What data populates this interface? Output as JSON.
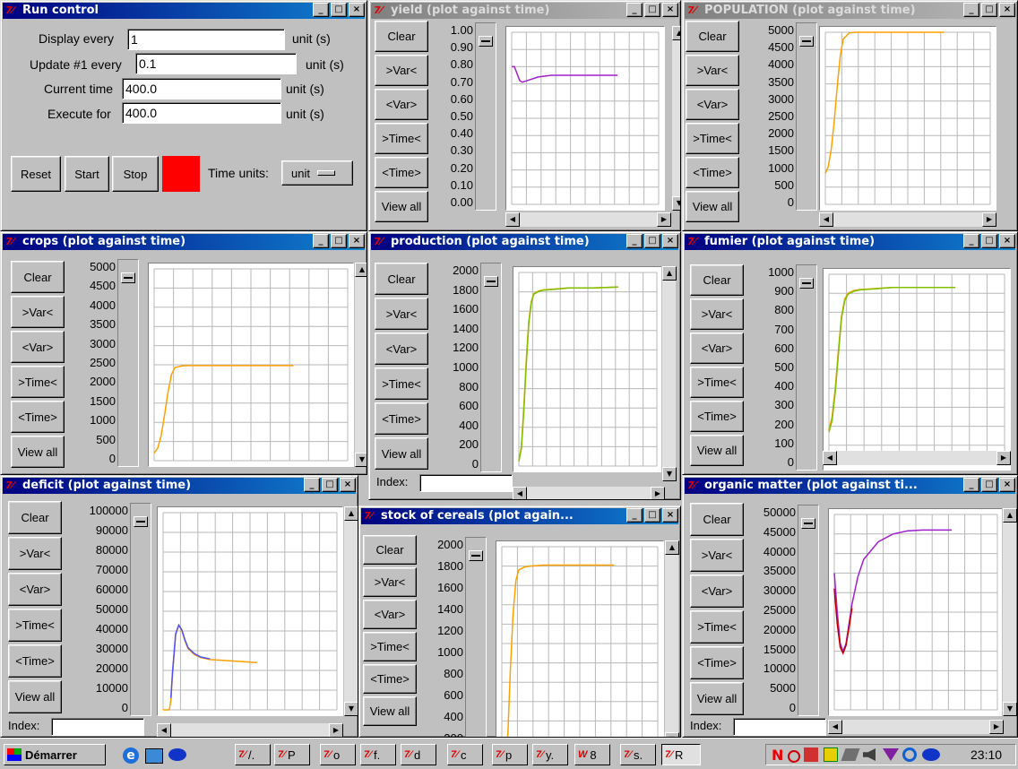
{
  "run_control": {
    "title": "Run control",
    "display_label": "Display every",
    "display_value": "1",
    "display_unit": "unit  (s)",
    "update_label": "Update #1 every",
    "update_value": "0.1",
    "update_unit": "unit  (s)",
    "current_label": "Current time",
    "current_value": "400.0",
    "current_unit": "unit  (s)",
    "execute_label": "Execute for",
    "execute_value": "400.0",
    "execute_unit": "unit  (s)",
    "reset": "Reset",
    "start": "Start",
    "stop": "Stop",
    "time_units_label": "Time units:",
    "time_units_value": "unit",
    "status_color": "#ff0000"
  },
  "plot_buttons": {
    "clear": "Clear",
    "var_in": ">Var<",
    "var_out": "<Var>",
    "time_in": ">Time<",
    "time_out": "<Time>",
    "view_all": "View all"
  },
  "index_label": "Index:",
  "windows": {
    "yield": {
      "title": "yield (plot against time)",
      "ticks": [
        "1.00",
        "0.90",
        "0.80",
        "0.70",
        "0.60",
        "0.50",
        "0.40",
        "0.30",
        "0.20",
        "0.10",
        "0.00"
      ]
    },
    "population": {
      "title": "POPULATION  (plot against time)",
      "ticks": [
        "5000",
        "4500",
        "4000",
        "3500",
        "3000",
        "2500",
        "2000",
        "1500",
        "1000",
        "500",
        "0"
      ]
    },
    "crops": {
      "title": "crops  (plot against time)",
      "ticks": [
        "5000",
        "4500",
        "4000",
        "3500",
        "3000",
        "2500",
        "2000",
        "1500",
        "1000",
        "500",
        "0"
      ]
    },
    "production": {
      "title": "production (plot against time)",
      "ticks": [
        "2000",
        "1800",
        "1600",
        "1400",
        "1200",
        "1000",
        "800",
        "600",
        "400",
        "200",
        "0"
      ]
    },
    "fumier": {
      "title": "fumier (plot against time)",
      "ticks": [
        "1000",
        "900",
        "800",
        "700",
        "600",
        "500",
        "400",
        "300",
        "200",
        "100",
        "0"
      ]
    },
    "deficit": {
      "title": "deficit (plot against time)",
      "ticks": [
        "100000",
        "90000",
        "80000",
        "70000",
        "60000",
        "50000",
        "40000",
        "30000",
        "20000",
        "10000",
        "0"
      ]
    },
    "stock": {
      "title": "stock of cereals  (plot again...",
      "ticks": [
        "2000",
        "1800",
        "1600",
        "1400",
        "1200",
        "1000",
        "800",
        "600",
        "400",
        "200"
      ]
    },
    "organic": {
      "title": "organic matter  (plot against ti...",
      "ticks": [
        "50000",
        "45000",
        "40000",
        "35000",
        "30000",
        "25000",
        "20000",
        "15000",
        "10000",
        "5000",
        "0"
      ]
    }
  },
  "chart_data": [
    {
      "type": "line",
      "title": "yield (plot against time)",
      "ylim": [
        0,
        1
      ],
      "xlim": [
        0,
        400
      ],
      "series": [
        {
          "color": "#a020d0",
          "x": [
            0,
            10,
            30,
            40,
            60,
            100,
            150,
            200,
            300,
            400
          ],
          "y": [
            0.8,
            0.8,
            0.72,
            0.71,
            0.72,
            0.74,
            0.75,
            0.75,
            0.75,
            0.75
          ]
        }
      ]
    },
    {
      "type": "line",
      "title": "POPULATION  (plot against time)",
      "ylim": [
        0,
        5000
      ],
      "xlim": [
        0,
        400
      ],
      "series": [
        {
          "color": "#ffa000",
          "x": [
            0,
            10,
            20,
            30,
            40,
            50,
            60,
            80,
            100,
            150,
            200,
            300,
            400
          ],
          "y": [
            900,
            1100,
            1600,
            2400,
            3400,
            4300,
            4800,
            4980,
            5000,
            5000,
            5000,
            5000,
            5000
          ]
        }
      ]
    },
    {
      "type": "line",
      "title": "crops  (plot against time)",
      "ylim": [
        0,
        5000
      ],
      "xlim": [
        0,
        400
      ],
      "series": [
        {
          "color": "#ffa000",
          "x": [
            0,
            10,
            20,
            30,
            40,
            50,
            60,
            80,
            100,
            150,
            200,
            300,
            400
          ],
          "y": [
            200,
            320,
            650,
            1200,
            1800,
            2250,
            2430,
            2470,
            2480,
            2480,
            2480,
            2480,
            2480
          ]
        }
      ]
    },
    {
      "type": "line",
      "title": "production (plot against time)",
      "ylim": [
        0,
        2000
      ],
      "xlim": [
        0,
        400
      ],
      "series": [
        {
          "color": "#ffa000",
          "x": [
            0,
            10,
            20,
            30,
            40,
            50,
            60,
            80,
            100,
            150,
            200,
            300,
            400
          ],
          "y": [
            50,
            200,
            600,
            1100,
            1500,
            1700,
            1780,
            1810,
            1820,
            1830,
            1840,
            1840,
            1850
          ]
        },
        {
          "color": "#7fbf00",
          "x": [
            0,
            10,
            20,
            30,
            40,
            50,
            60,
            80,
            100,
            150,
            200,
            300,
            400
          ],
          "y": [
            50,
            180,
            560,
            1060,
            1470,
            1690,
            1775,
            1805,
            1818,
            1828,
            1840,
            1840,
            1850
          ]
        }
      ]
    },
    {
      "type": "line",
      "title": "fumier (plot against time)",
      "ylim": [
        0,
        1000
      ],
      "xlim": [
        0,
        400
      ],
      "series": [
        {
          "color": "#ffa000",
          "x": [
            0,
            10,
            20,
            30,
            40,
            50,
            60,
            80,
            100,
            150,
            200,
            300,
            400
          ],
          "y": [
            180,
            250,
            400,
            600,
            780,
            870,
            900,
            915,
            920,
            925,
            930,
            930,
            930
          ]
        },
        {
          "color": "#7fbf00",
          "x": [
            0,
            10,
            20,
            30,
            40,
            50,
            60,
            80,
            100,
            150,
            200,
            300,
            400
          ],
          "y": [
            170,
            230,
            380,
            580,
            770,
            860,
            895,
            912,
            918,
            924,
            930,
            930,
            930
          ]
        }
      ]
    },
    {
      "type": "line",
      "title": "deficit (plot against time)",
      "ylim": [
        0,
        100000
      ],
      "xlim": [
        0,
        400
      ],
      "series": [
        {
          "color": "#ffa000",
          "x": [
            0,
            20,
            25,
            30,
            40,
            50,
            60,
            70,
            80,
            100,
            120,
            150,
            200,
            250,
            300
          ],
          "y": [
            0,
            0,
            5000,
            18000,
            38000,
            43000,
            40000,
            35000,
            31000,
            28000,
            26500,
            25500,
            25000,
            24500,
            24000
          ]
        },
        {
          "color": "#5050ff",
          "x": [
            25,
            30,
            40,
            50,
            60,
            70,
            80,
            100,
            120,
            150
          ],
          "y": [
            6000,
            19000,
            38500,
            43000,
            40500,
            35500,
            31500,
            28500,
            26800,
            25800
          ]
        }
      ]
    },
    {
      "type": "line",
      "title": "stock of cereals  (plot again...",
      "ylim": [
        0,
        2000
      ],
      "xlim": [
        0,
        400
      ],
      "series": [
        {
          "color": "#ffa000",
          "x": [
            0,
            20,
            22,
            30,
            40,
            50,
            60,
            80,
            100,
            150,
            200,
            300,
            400
          ],
          "y": [
            0,
            0,
            100,
            700,
            1300,
            1650,
            1760,
            1790,
            1800,
            1810,
            1810,
            1810,
            1810
          ]
        }
      ]
    },
    {
      "type": "line",
      "title": "organic matter  (plot against ti...",
      "ylim": [
        0,
        50000
      ],
      "xlim": [
        0,
        400
      ],
      "series": [
        {
          "color": "#a020d0",
          "x": [
            0,
            10,
            20,
            30,
            40,
            50,
            60,
            80,
            100,
            150,
            200,
            250,
            300,
            400
          ],
          "y": [
            35000,
            25000,
            17000,
            15000,
            17000,
            22000,
            27000,
            34000,
            38500,
            43000,
            45000,
            45800,
            46000,
            46000
          ]
        },
        {
          "color": "#c00000",
          "x": [
            0,
            10,
            20,
            30,
            40,
            50,
            60
          ],
          "y": [
            31000,
            22000,
            16000,
            14500,
            16500,
            21000,
            26000
          ]
        }
      ]
    }
  ],
  "taskbar": {
    "start": "Démarrer",
    "items": [
      "/.",
      "P",
      "o",
      "f.",
      "d",
      "c",
      "p",
      "y.",
      "8",
      "s.",
      "R"
    ],
    "clock": "23:10"
  }
}
